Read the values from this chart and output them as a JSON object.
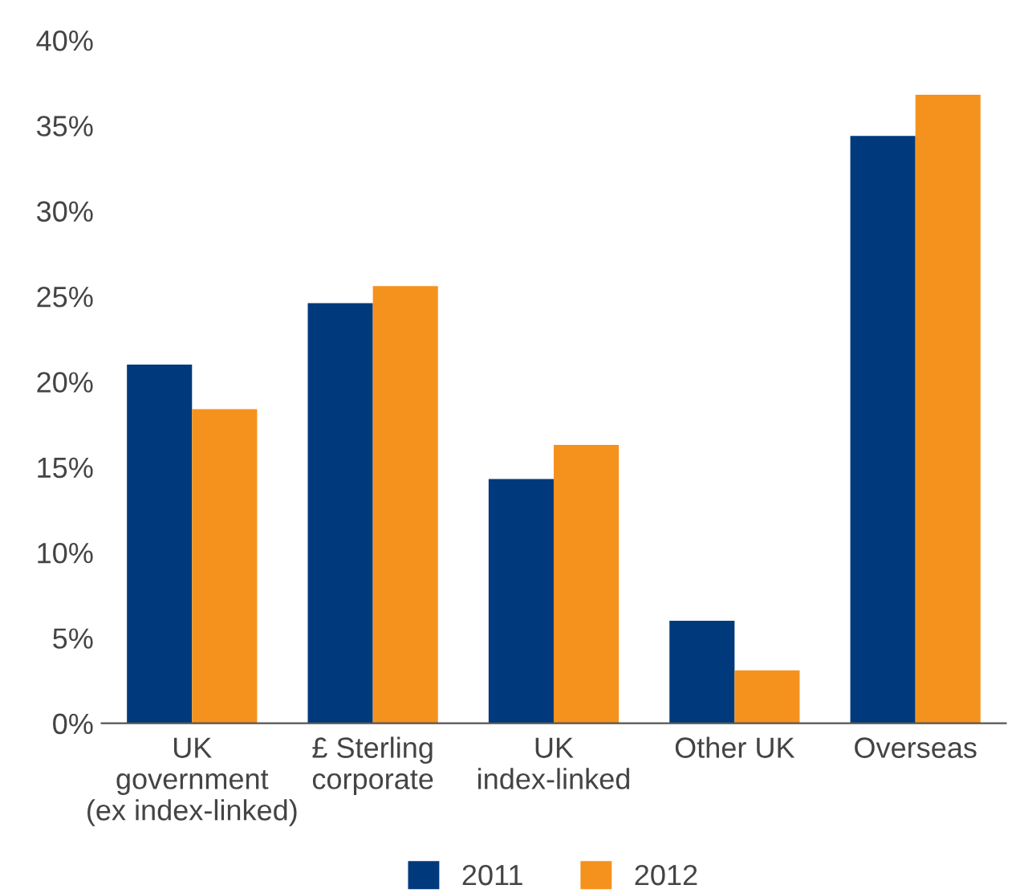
{
  "chart_data": {
    "type": "bar",
    "categories": [
      "UK\ngovernment\n(ex index-linked)",
      "£ Sterling\ncorporate",
      "UK\nindex-linked",
      "Other UK",
      "Overseas"
    ],
    "series": [
      {
        "name": "2011",
        "color": "#003a7d",
        "values": [
          21.0,
          24.6,
          14.3,
          6.0,
          34.4
        ]
      },
      {
        "name": "2012",
        "color": "#f5921e",
        "values": [
          18.4,
          25.6,
          16.3,
          3.1,
          36.8
        ]
      }
    ],
    "ylim": [
      0,
      40
    ],
    "yticks": [
      {
        "value": 0,
        "label": "0%"
      },
      {
        "value": 5,
        "label": "5%"
      },
      {
        "value": 10,
        "label": "10%"
      },
      {
        "value": 15,
        "label": "15%"
      },
      {
        "value": 20,
        "label": "20%"
      },
      {
        "value": 25,
        "label": "25%"
      },
      {
        "value": 30,
        "label": "30%"
      },
      {
        "value": 35,
        "label": "35%"
      },
      {
        "value": 40,
        "label": "40%"
      }
    ],
    "grid": false,
    "legend": "bottom"
  }
}
